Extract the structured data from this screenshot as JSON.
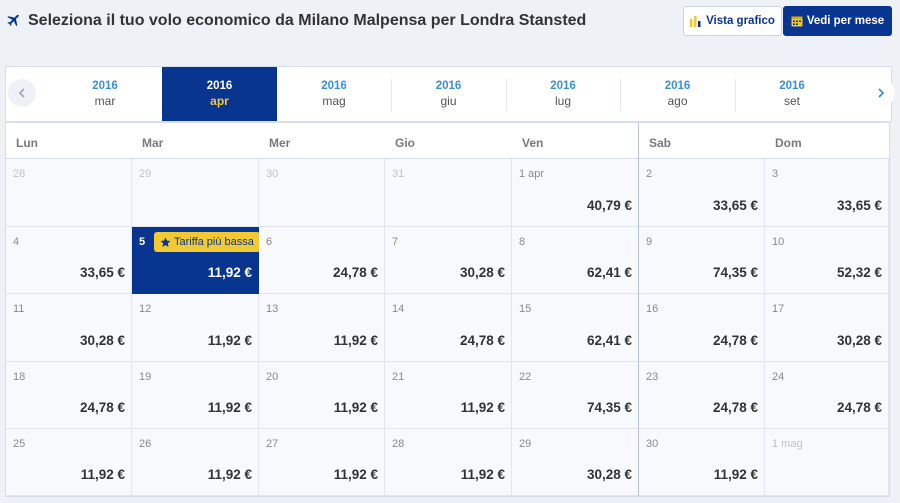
{
  "header": {
    "title": "Seleziona il tuo volo economico da Milano Malpensa per Londra Stansted",
    "icon": "plane-icon",
    "buttons": {
      "chart_view": "Vista grafico",
      "month_view": "Vedi per mese"
    }
  },
  "colors": {
    "primary": "#073590",
    "accent": "#f1c933",
    "year_link": "#3a8fd6"
  },
  "months": [
    {
      "year": "2016",
      "month": "mar",
      "active": false
    },
    {
      "year": "2016",
      "month": "apr",
      "active": true
    },
    {
      "year": "2016",
      "month": "mag",
      "active": false
    },
    {
      "year": "2016",
      "month": "giu",
      "active": false
    },
    {
      "year": "2016",
      "month": "lug",
      "active": false
    },
    {
      "year": "2016",
      "month": "ago",
      "active": false
    },
    {
      "year": "2016",
      "month": "set",
      "active": false
    }
  ],
  "weekdays": [
    "Lun",
    "Mar",
    "Mer",
    "Gio",
    "Ven",
    "Sab",
    "Dom"
  ],
  "lowest_fare_label": "Tariffa più bassa",
  "weeks": [
    [
      {
        "day": "28",
        "price": "",
        "muted": true
      },
      {
        "day": "29",
        "price": "",
        "muted": true
      },
      {
        "day": "30",
        "price": "",
        "muted": true
      },
      {
        "day": "31",
        "price": "",
        "muted": true
      },
      {
        "day": "1 apr",
        "price": "40,79 €"
      },
      {
        "day": "2",
        "price": "33,65 €"
      },
      {
        "day": "3",
        "price": "33,65 €"
      }
    ],
    [
      {
        "day": "4",
        "price": "33,65 €"
      },
      {
        "day": "5",
        "price": "11,92 €",
        "selected": true
      },
      {
        "day": "6",
        "price": "24,78 €"
      },
      {
        "day": "7",
        "price": "30,28 €"
      },
      {
        "day": "8",
        "price": "62,41 €"
      },
      {
        "day": "9",
        "price": "74,35 €"
      },
      {
        "day": "10",
        "price": "52,32 €"
      }
    ],
    [
      {
        "day": "11",
        "price": "30,28 €"
      },
      {
        "day": "12",
        "price": "11,92 €"
      },
      {
        "day": "13",
        "price": "11,92 €"
      },
      {
        "day": "14",
        "price": "24,78 €"
      },
      {
        "day": "15",
        "price": "62,41 €"
      },
      {
        "day": "16",
        "price": "24,78 €"
      },
      {
        "day": "17",
        "price": "30,28 €"
      }
    ],
    [
      {
        "day": "18",
        "price": "24,78 €"
      },
      {
        "day": "19",
        "price": "11,92 €"
      },
      {
        "day": "20",
        "price": "11,92 €"
      },
      {
        "day": "21",
        "price": "11,92 €"
      },
      {
        "day": "22",
        "price": "74,35 €"
      },
      {
        "day": "23",
        "price": "24,78 €"
      },
      {
        "day": "24",
        "price": "24,78 €"
      }
    ],
    [
      {
        "day": "25",
        "price": "11,92 €"
      },
      {
        "day": "26",
        "price": "11,92 €"
      },
      {
        "day": "27",
        "price": "11,92 €"
      },
      {
        "day": "28",
        "price": "11,92 €"
      },
      {
        "day": "29",
        "price": "30,28 €"
      },
      {
        "day": "30",
        "price": "11,92 €"
      },
      {
        "day": "1 mag",
        "price": "",
        "muted": true
      }
    ]
  ]
}
